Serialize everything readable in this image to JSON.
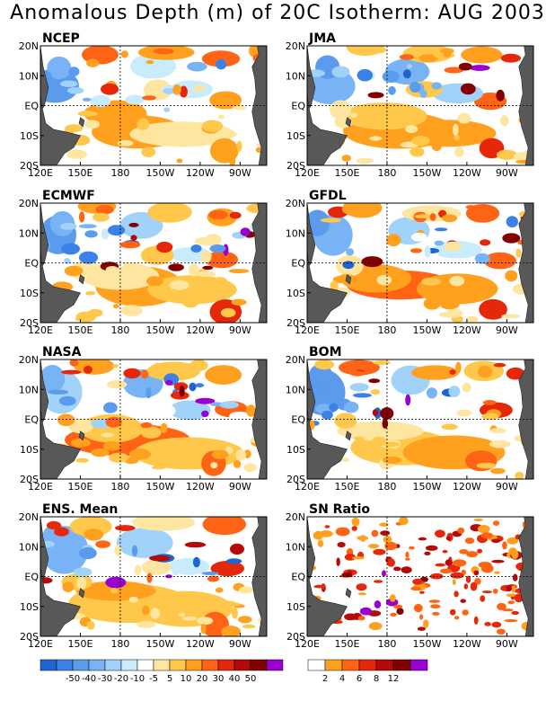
{
  "title": "Anomalous Depth (m) of 20C Isotherm: AUG 2003",
  "axes": {
    "x_ticks": [
      "120E",
      "150E",
      "180",
      "150W",
      "120W",
      "90W"
    ],
    "y_ticks": [
      "20N",
      "10N",
      "EQ",
      "10S",
      "20S"
    ]
  },
  "chart_data": [
    {
      "type": "heatmap",
      "title": "NCEP",
      "xlim": [
        120,
        290
      ],
      "ylim": [
        -20,
        20
      ]
    },
    {
      "type": "heatmap",
      "title": "JMA",
      "xlim": [
        120,
        290
      ],
      "ylim": [
        -20,
        20
      ]
    },
    {
      "type": "heatmap",
      "title": "ECMWF",
      "xlim": [
        120,
        290
      ],
      "ylim": [
        -20,
        20
      ]
    },
    {
      "type": "heatmap",
      "title": "GFDL",
      "xlim": [
        120,
        290
      ],
      "ylim": [
        -20,
        20
      ]
    },
    {
      "type": "heatmap",
      "title": "NASA",
      "xlim": [
        120,
        290
      ],
      "ylim": [
        -20,
        20
      ]
    },
    {
      "type": "heatmap",
      "title": "BOM",
      "xlim": [
        120,
        290
      ],
      "ylim": [
        -20,
        20
      ]
    },
    {
      "type": "heatmap",
      "title": "ENS. Mean",
      "xlim": [
        120,
        290
      ],
      "ylim": [
        -20,
        20
      ]
    },
    {
      "type": "heatmap",
      "title": "SN Ratio",
      "xlim": [
        120,
        290
      ],
      "ylim": [
        -20,
        20
      ]
    }
  ],
  "legend_depth": {
    "colors": [
      "#1e64d2",
      "#3c82e6",
      "#5a9bee",
      "#78b4f5",
      "#a0d2fa",
      "#c8ecfc",
      "#ffffff",
      "#ffe6a0",
      "#ffc84b",
      "#ffa01e",
      "#ff6414",
      "#e6280a",
      "#b40a0a",
      "#820000",
      "#9b00d2"
    ],
    "labels": [
      "-50",
      "-40",
      "-30",
      "-20",
      "-10",
      "-5",
      "5",
      "10",
      "20",
      "30",
      "40",
      "50"
    ]
  },
  "legend_sn": {
    "colors": [
      "#ffffff",
      "#ffa01e",
      "#ff6414",
      "#e6280a",
      "#b40a0a",
      "#820000",
      "#9b00d2"
    ],
    "labels": [
      "2",
      "4",
      "6",
      "8",
      "12"
    ]
  },
  "colors": {
    "land": "#585858",
    "frame": "#000000"
  }
}
